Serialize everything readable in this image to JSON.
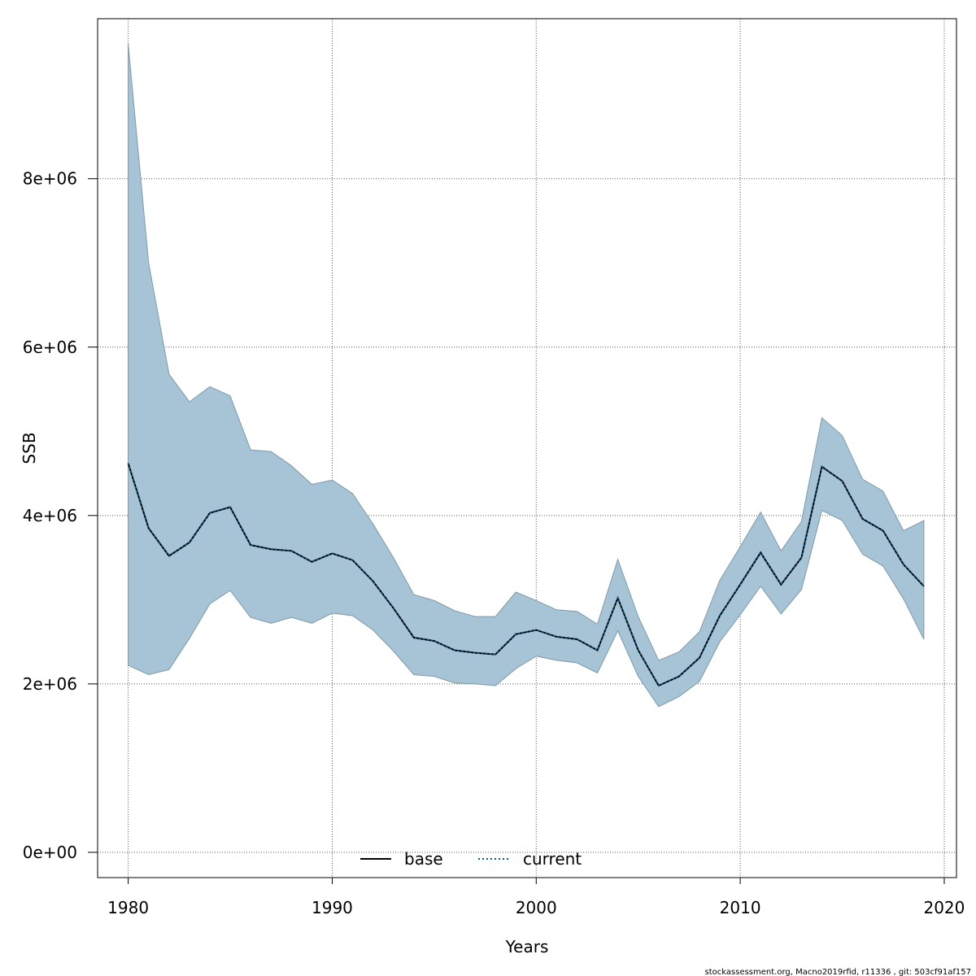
{
  "chart_data": {
    "type": "line",
    "title": "",
    "xlabel": "Years",
    "ylabel": "SSB",
    "xlim": [
      1978.5,
      2020.6
    ],
    "ylim": [
      -300000,
      9900000
    ],
    "x_ticks": [
      1980,
      1990,
      2000,
      2010,
      2020
    ],
    "x_tick_labels": [
      "1980",
      "1990",
      "2000",
      "2010",
      "2020"
    ],
    "y_ticks": [
      0,
      2000000,
      4000000,
      6000000,
      8000000
    ],
    "y_tick_labels": [
      "0e+00",
      "2e+06",
      "4e+06",
      "6e+06",
      "8e+06"
    ],
    "grid": true,
    "legend": {
      "position": "bottom-center",
      "entries": [
        {
          "name": "base",
          "style": "solid",
          "color": "#000000"
        },
        {
          "name": "current",
          "style": "dotted",
          "color": "#0b5c8a"
        }
      ]
    },
    "x": [
      1980,
      1981,
      1982,
      1983,
      1984,
      1985,
      1986,
      1987,
      1988,
      1989,
      1990,
      1991,
      1992,
      1993,
      1994,
      1995,
      1996,
      1997,
      1998,
      1999,
      2000,
      2001,
      2002,
      2003,
      2004,
      2005,
      2006,
      2007,
      2008,
      2009,
      2010,
      2011,
      2012,
      2013,
      2014,
      2015,
      2016,
      2017,
      2018,
      2019
    ],
    "series": [
      {
        "name": "base",
        "values": [
          4620000,
          3850000,
          3520000,
          3680000,
          4030000,
          4100000,
          3650000,
          3600000,
          3580000,
          3450000,
          3550000,
          3470000,
          3220000,
          2900000,
          2550000,
          2510000,
          2400000,
          2370000,
          2350000,
          2590000,
          2640000,
          2560000,
          2530000,
          2400000,
          3020000,
          2400000,
          1980000,
          2090000,
          2310000,
          2810000,
          3180000,
          3560000,
          3180000,
          3500000,
          4580000,
          4410000,
          3960000,
          3820000,
          3420000,
          3160000
        ]
      },
      {
        "name": "current",
        "values": [
          4620000,
          3850000,
          3520000,
          3680000,
          4030000,
          4100000,
          3650000,
          3600000,
          3580000,
          3450000,
          3550000,
          3470000,
          3220000,
          2900000,
          2550000,
          2510000,
          2400000,
          2370000,
          2350000,
          2590000,
          2640000,
          2560000,
          2530000,
          2400000,
          3020000,
          2400000,
          1980000,
          2090000,
          2310000,
          2810000,
          3180000,
          3560000,
          3180000,
          3500000,
          4580000,
          4410000,
          3960000,
          3820000,
          3420000,
          3160000
        ]
      }
    ],
    "band": {
      "name": "confidence interval",
      "color": "#a6c4d5",
      "upper": [
        9600000,
        7000000,
        5680000,
        5350000,
        5530000,
        5420000,
        4780000,
        4760000,
        4590000,
        4370000,
        4420000,
        4260000,
        3900000,
        3500000,
        3060000,
        2990000,
        2870000,
        2800000,
        2800000,
        3090000,
        2990000,
        2880000,
        2860000,
        2710000,
        3480000,
        2800000,
        2280000,
        2380000,
        2620000,
        3230000,
        3630000,
        4040000,
        3580000,
        3930000,
        5160000,
        4950000,
        4430000,
        4290000,
        3820000,
        3940000
      ],
      "lower": [
        2220000,
        2110000,
        2170000,
        2540000,
        2950000,
        3110000,
        2790000,
        2720000,
        2790000,
        2720000,
        2840000,
        2810000,
        2640000,
        2390000,
        2110000,
        2090000,
        2010000,
        2000000,
        1980000,
        2180000,
        2330000,
        2280000,
        2250000,
        2130000,
        2630000,
        2090000,
        1730000,
        1850000,
        2030000,
        2500000,
        2820000,
        3160000,
        2830000,
        3120000,
        4060000,
        3940000,
        3540000,
        3400000,
        3010000,
        2530000
      ]
    }
  },
  "footer": {
    "text": "stockassessment.org, Macno2019rfid, r11336 , git: 503cf91af157"
  }
}
